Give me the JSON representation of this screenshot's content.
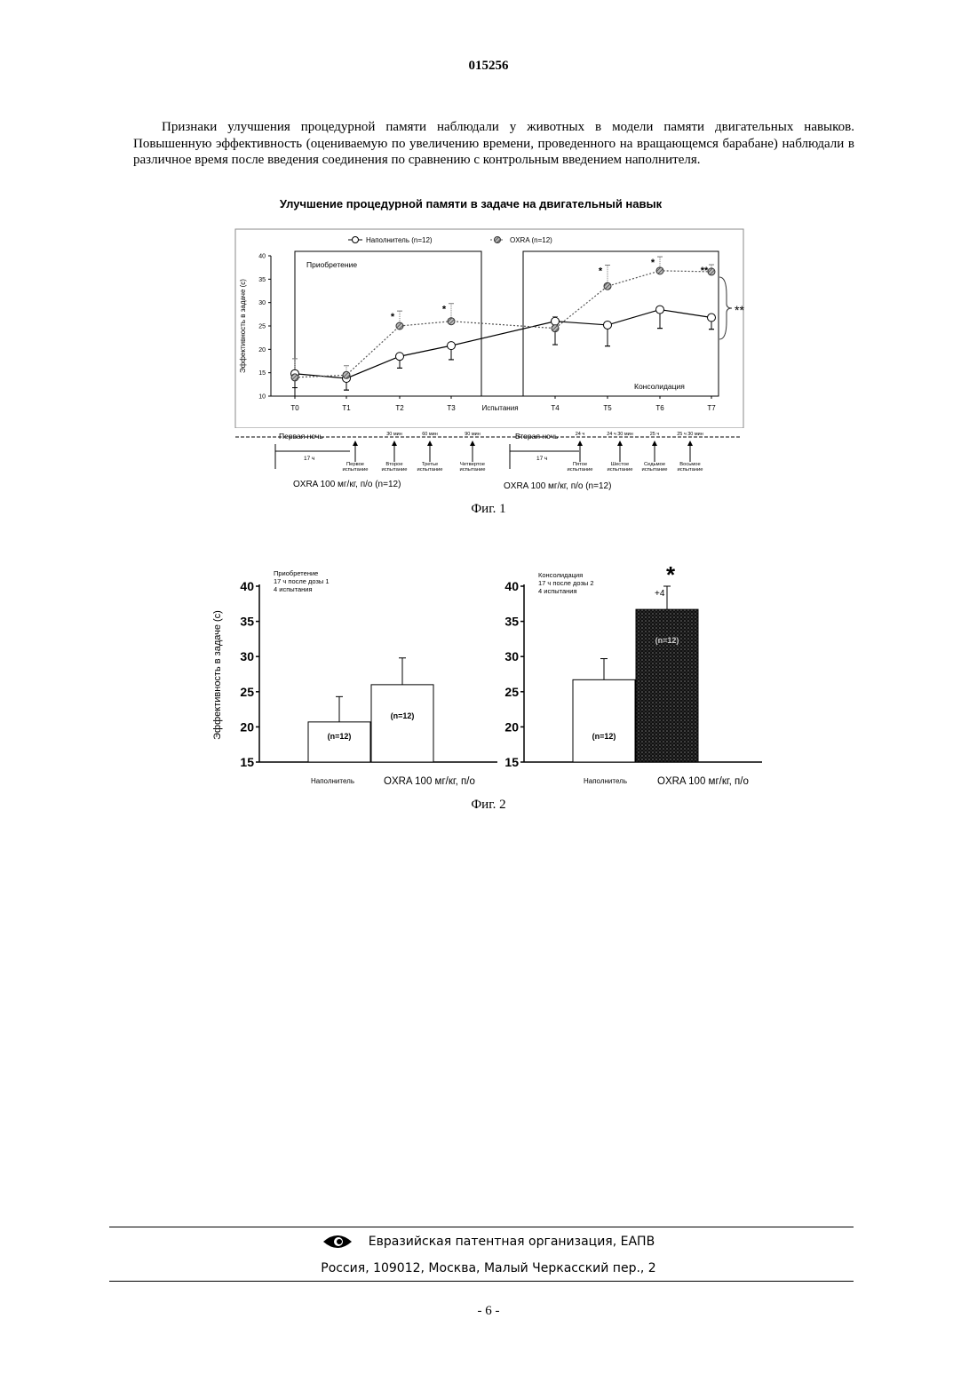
{
  "document": {
    "number": "015256",
    "paragraph": "Признаки улучшения процедурной памяти наблюдали у животных в модели памяти двигательных навыков. Повышенную эффективность (оцениваемую по увеличению времени, проведенного на вращающемся барабане) наблюдали в различное время после введения соединения по сравнению с контрольным введением наполнителя.",
    "page_number": "- 6 -"
  },
  "figure1": {
    "title": "Улучшение процедурной памяти в задаче на двигательный навык",
    "caption": "Фиг. 1",
    "panel_acquisition_label": "Приобретение",
    "panel_consolidation_label": "Консолидация",
    "trials_label": "Испытания",
    "first_night_label": "Первая ночь",
    "second_night_label": "Вторая ночь",
    "interval_17h_1": "17 ч",
    "interval_17h_2": "17 ч",
    "timeline_interval_labels": [
      "30 мин",
      "60 мин",
      "90 мин",
      "24 ч",
      "24 ч 30 мин",
      "25 ч",
      "25 ч 30 мин"
    ],
    "trial_labels_row1": [
      "Первое",
      "Второе",
      "Третье",
      "Четвертое",
      "Пятое",
      "Шестое",
      "Седьмое",
      "Восьмое"
    ],
    "trial_labels_row2": [
      "испытание",
      "испытание",
      "испытание",
      "испытание",
      "испытание",
      "испытание",
      "испытание",
      "испытание"
    ],
    "dose_label_1": "OXRA 100 мг/кг, п/о (n=12)",
    "dose_label_2": "OXRA 100 мг/кг, п/о (n=12)",
    "significance_marks": [
      {
        "x_index": 2,
        "text": "*"
      },
      {
        "x_index": 3,
        "text": "*"
      },
      {
        "x_index": 5,
        "text": "*"
      },
      {
        "x_index": 6,
        "text": "*"
      },
      {
        "x_index": 7,
        "text": "**"
      }
    ],
    "bracket_mark": "**"
  },
  "chart_data": [
    {
      "type": "line",
      "title": "",
      "ylabel": "Эффективность в задаче (с)",
      "xlabel": "Испытания",
      "x": [
        "T0",
        "T1",
        "T2",
        "T3",
        "T4",
        "T5",
        "T6",
        "T7"
      ],
      "ylim": [
        10,
        40
      ],
      "yticks": [
        10,
        15,
        20,
        25,
        30,
        35,
        40
      ],
      "legend_position": "top",
      "series": [
        {
          "name": "Наполнитель (n=12)",
          "marker": "open-circle",
          "color": "#000000",
          "values": [
            14.8,
            13.8,
            18.5,
            20.8,
            26.0,
            25.2,
            28.5,
            26.8
          ],
          "error": [
            3.0,
            2.5,
            2.5,
            3.0,
            5.0,
            4.5,
            4.0,
            2.5
          ]
        },
        {
          "name": "OXRA (n=12)",
          "marker": "hatched-circle",
          "color": "#555555",
          "values": [
            14.0,
            14.5,
            25.0,
            26.0,
            24.5,
            33.5,
            36.8,
            36.6
          ],
          "error": [
            4.0,
            2.0,
            3.2,
            3.8,
            2.5,
            4.5,
            3.0,
            1.5
          ]
        }
      ]
    },
    {
      "type": "bar",
      "title": "Приобретение",
      "subtitle_lines": [
        "17 ч после дозы 1",
        "4 испытания"
      ],
      "ylabel": "Эффективность в задаче (с)",
      "categories": [
        "Наполнитель",
        "OXRA 100 мг/кг, п/о"
      ],
      "values": [
        20.7,
        26.0
      ],
      "errors": [
        3.6,
        3.8
      ],
      "bar_labels": [
        "(n=12)",
        "(n=12)"
      ],
      "ylim": [
        15,
        40
      ],
      "yticks": [
        15,
        20,
        25,
        30,
        35,
        40
      ]
    },
    {
      "type": "bar",
      "title": "Консолидация",
      "subtitle_lines": [
        "17 ч после дозы 2",
        "4 испытания"
      ],
      "categories": [
        "Наполнитель",
        "OXRA 100 мг/кг, п/о"
      ],
      "values": [
        26.7,
        36.7
      ],
      "errors": [
        3.0,
        3.3
      ],
      "bar_labels": [
        "(n=12)",
        "(n=12)"
      ],
      "ylim": [
        15,
        40
      ],
      "yticks": [
        15,
        20,
        25,
        30,
        35,
        40
      ],
      "annotations": [
        "*",
        "+4"
      ]
    }
  ],
  "figure2": {
    "caption": "Фиг. 2"
  },
  "footer": {
    "organization": "Евразийская патентная организация, ЕАПВ",
    "address": "Россия, 109012, Москва, Малый Черкасский пер., 2"
  }
}
